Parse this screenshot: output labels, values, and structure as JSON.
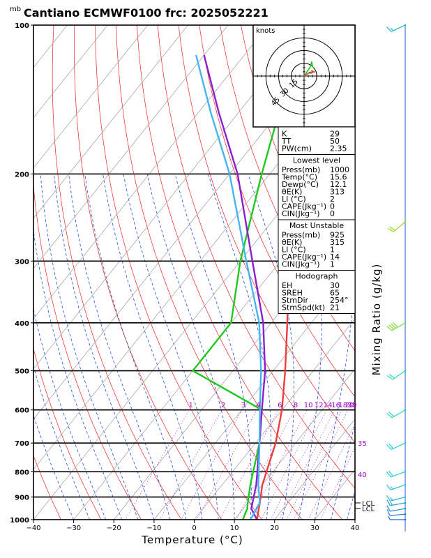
{
  "page": {
    "title": "Cantiano ECMWF0100  frc: 2025052221",
    "unit_label": "mb"
  },
  "chart_data": {
    "type": "line",
    "subtype": "skew-t log-p diagram",
    "title": "Cantiano ECMWF0100  frc: 2025052221",
    "xlabel": "Temperature (°C)",
    "ylabel": "mb",
    "right_label": "Mixing Ratio (g/kg)",
    "xlim": [
      -40,
      40
    ],
    "ylim": [
      1000,
      100
    ],
    "y_scale": "log",
    "x_ticks": [
      -40,
      -30,
      -20,
      -10,
      0,
      10,
      20,
      30,
      40
    ],
    "y_ticks": [
      100,
      200,
      300,
      400,
      500,
      600,
      700,
      800,
      900,
      1000
    ],
    "y_bold_ticks": [
      100,
      200,
      300,
      400,
      500,
      600,
      700,
      800,
      900,
      1000
    ],
    "mixing_ratio_labels": [
      "1",
      "2",
      "3",
      "4",
      "6",
      "8",
      "10",
      "12",
      "14",
      "16",
      "18",
      "20",
      "25",
      "30"
    ],
    "mixing_ratio_values": [
      1,
      2,
      3,
      4,
      6,
      8,
      10,
      12,
      14,
      16,
      18,
      20,
      25,
      30
    ],
    "theta_e_labels": [
      {
        "value": "35",
        "pressure": 700
      },
      {
        "value": "40",
        "pressure": 810
      }
    ],
    "lcl_labels": [
      {
        "label": "LCL",
        "pressure": 925
      },
      {
        "label": "LCL",
        "pressure": 950
      }
    ],
    "series": [
      {
        "name": "Temperature",
        "color": "#f03c3c",
        "points": [
          {
            "p": 1000,
            "t": 15.6
          },
          {
            "p": 925,
            "t": 13.0
          },
          {
            "p": 850,
            "t": 10.0
          },
          {
            "p": 700,
            "t": 5.0
          },
          {
            "p": 600,
            "t": 0.0
          },
          {
            "p": 500,
            "t": -7.0
          },
          {
            "p": 400,
            "t": -16.0
          },
          {
            "p": 300,
            "t": -28.0
          },
          {
            "p": 250,
            "t": -38.0
          },
          {
            "p": 200,
            "t": -41.0
          },
          {
            "p": 150,
            "t": -40.0
          },
          {
            "p": 120,
            "t": -38.0
          }
        ]
      },
      {
        "name": "Dew point",
        "color": "#1ec81e",
        "points": [
          {
            "p": 1000,
            "t": 12.1
          },
          {
            "p": 950,
            "t": 11.0
          },
          {
            "p": 925,
            "t": 10.0
          },
          {
            "p": 850,
            "t": 7.0
          },
          {
            "p": 700,
            "t": 1.0
          },
          {
            "p": 600,
            "t": -5.0
          },
          {
            "p": 500,
            "t": -30.0
          },
          {
            "p": 400,
            "t": -30.0
          },
          {
            "p": 300,
            "t": -40.0
          },
          {
            "p": 200,
            "t": -52.0
          },
          {
            "p": 150,
            "t": -60.0
          },
          {
            "p": 100,
            "t": -70.0
          }
        ]
      },
      {
        "name": "Parcel (lowest level)",
        "color": "#8c1ed2",
        "points": [
          {
            "p": 1000,
            "t": 15.6
          },
          {
            "p": 950,
            "t": 12.0
          },
          {
            "p": 850,
            "t": 8.5
          },
          {
            "p": 700,
            "t": 1.0
          },
          {
            "p": 600,
            "t": -5.0
          },
          {
            "p": 500,
            "t": -12.0
          },
          {
            "p": 400,
            "t": -22.0
          },
          {
            "p": 300,
            "t": -37.0
          },
          {
            "p": 200,
            "t": -58.0
          },
          {
            "p": 150,
            "t": -75.0
          },
          {
            "p": 115,
            "t": -90.0
          }
        ]
      },
      {
        "name": "Parcel (most unstable)",
        "color": "#46b4f0",
        "points": [
          {
            "p": 1000,
            "t": 14.0
          },
          {
            "p": 925,
            "t": 13.0
          },
          {
            "p": 850,
            "t": 9.0
          },
          {
            "p": 700,
            "t": 1.0
          },
          {
            "p": 600,
            "t": -5.5
          },
          {
            "p": 500,
            "t": -13.0
          },
          {
            "p": 400,
            "t": -23.0
          },
          {
            "p": 300,
            "t": -38.5
          },
          {
            "p": 200,
            "t": -60.0
          },
          {
            "p": 150,
            "t": -77.0
          },
          {
            "p": 115,
            "t": -92.0
          }
        ]
      }
    ],
    "wind_barbs": [
      {
        "p": 100,
        "dir": 245,
        "kt": 15,
        "color": "#1eb4dc"
      },
      {
        "p": 250,
        "dir": 230,
        "kt": 20,
        "color": "#96dc1e"
      },
      {
        "p": 400,
        "dir": 240,
        "kt": 40,
        "color": "#78dc32"
      },
      {
        "p": 500,
        "dir": 235,
        "kt": 20,
        "color": "#28d2b4"
      },
      {
        "p": 600,
        "dir": 240,
        "kt": 20,
        "color": "#28d2c8"
      },
      {
        "p": 700,
        "dir": 245,
        "kt": 20,
        "color": "#28d2d2"
      },
      {
        "p": 800,
        "dir": 250,
        "kt": 20,
        "color": "#28c8d2"
      },
      {
        "p": 850,
        "dir": 250,
        "kt": 15,
        "color": "#28c0d2"
      },
      {
        "p": 900,
        "dir": 255,
        "kt": 15,
        "color": "#28b4d2"
      },
      {
        "p": 925,
        "dir": 260,
        "kt": 15,
        "color": "#1ea0d2"
      },
      {
        "p": 950,
        "dir": 260,
        "kt": 10,
        "color": "#1e8cd2"
      },
      {
        "p": 975,
        "dir": 265,
        "kt": 10,
        "color": "#1e78d2"
      },
      {
        "p": 1000,
        "dir": 270,
        "kt": 5,
        "color": "#1e64d2"
      }
    ],
    "hodograph": {
      "label": "knots",
      "ring_labels": [
        "15",
        "30",
        "45"
      ],
      "ring_values": [
        15,
        30,
        45
      ],
      "max_kt": 60,
      "low_trace": [
        {
          "u": 0,
          "v": 0
        },
        {
          "u": 6,
          "v": 4
        },
        {
          "u": 13,
          "v": 5
        }
      ],
      "low_color": "#f03c3c",
      "upper_trace": [
        {
          "u": 0,
          "v": 0
        },
        {
          "u": 7,
          "v": 10
        },
        {
          "u": 9,
          "v": 17
        },
        {
          "u": 10,
          "v": 11
        },
        {
          "u": 12,
          "v": 9
        }
      ],
      "upper_color": "#1ec81e",
      "storm_motion": {
        "u": 7,
        "v": 4
      }
    }
  },
  "indices": {
    "general": [
      {
        "label": "K",
        "value": "29"
      },
      {
        "label": "TT",
        "value": "50"
      },
      {
        "label": "PW(cm)",
        "value": "2.35"
      }
    ],
    "lowest_header": "Lowest level",
    "lowest": [
      {
        "label": "Press(mb)",
        "value": "1000"
      },
      {
        "label": "Temp(°C)",
        "value": "15.6"
      },
      {
        "label": "Dewp(°C)",
        "value": "12.1"
      },
      {
        "label": "θE(K)",
        "value": "313"
      },
      {
        "label": "LI (°C)",
        "value": "2"
      },
      {
        "label": "CAPE(Jkg⁻¹)",
        "value": "0"
      },
      {
        "label": "CIN(Jkg⁻¹)",
        "value": "0"
      }
    ],
    "unstable_header": "Most Unstable",
    "unstable": [
      {
        "label": "Press(mb)",
        "value": "925"
      },
      {
        "label": "θE(K)",
        "value": "315"
      },
      {
        "label": "LI (°C)",
        "value": "1"
      },
      {
        "label": "CAPE(Jkg⁻¹)",
        "value": "14"
      },
      {
        "label": "CIN(Jkg⁻¹)",
        "value": "1"
      }
    ],
    "hodo_header": "Hodograph",
    "hodo": [
      {
        "label": "EH",
        "value": "30"
      },
      {
        "label": "SREH",
        "value": "65"
      },
      {
        "label": "StmDir",
        "value": "254°"
      },
      {
        "label": "StmSpd(kt)",
        "value": "21"
      }
    ]
  }
}
